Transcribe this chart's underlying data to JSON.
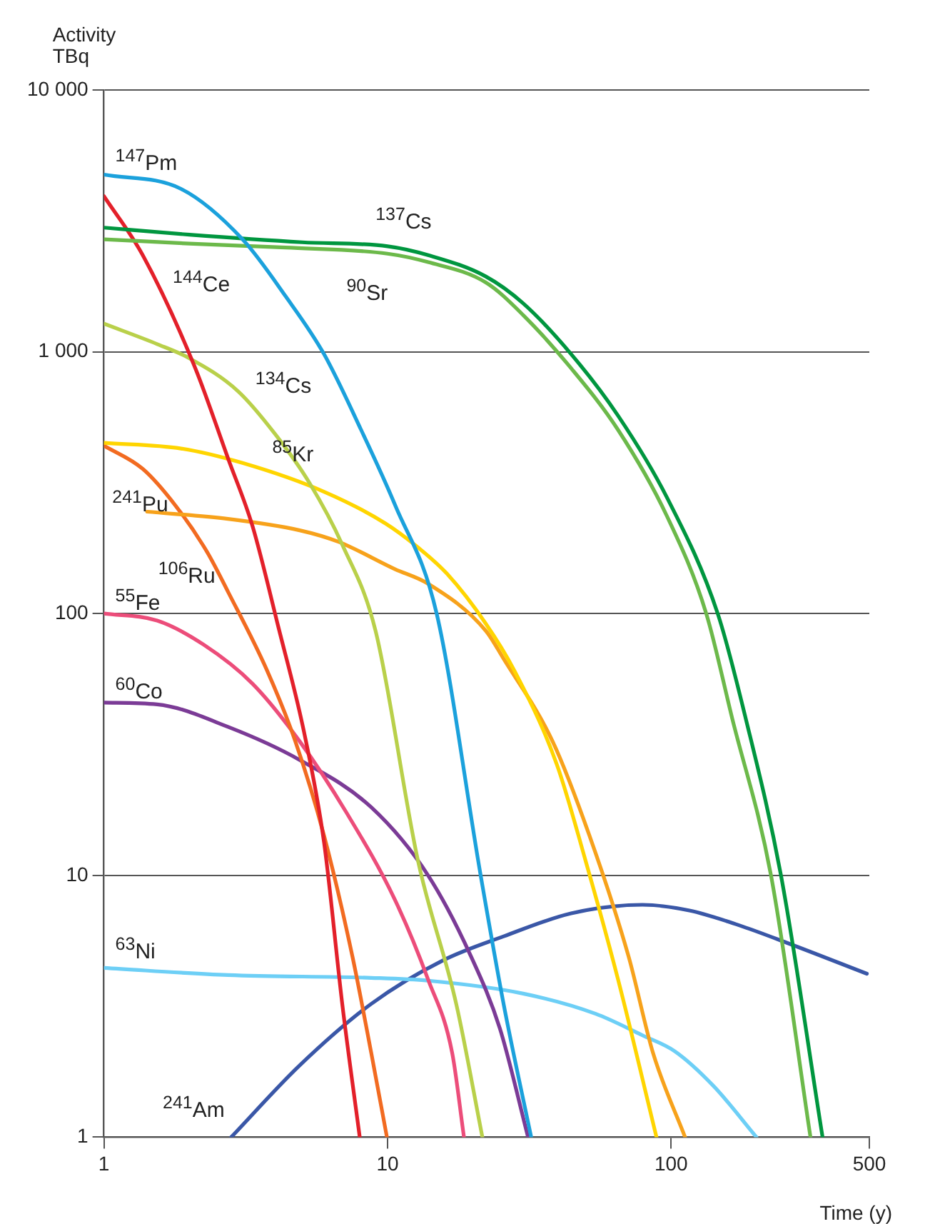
{
  "chart_data": {
    "type": "line",
    "ylabel": "Activity TBq",
    "xlabel": "Time (y)",
    "log": "xy",
    "grid": "y",
    "legend": false,
    "line_style": "solid",
    "xlim": [
      1,
      500
    ],
    "xticks": [
      1,
      10,
      100,
      500
    ],
    "ylim": [
      1,
      10000
    ],
    "yticks": [
      1,
      10,
      100,
      {
        "value": 1000,
        "label": "1 000"
      },
      {
        "value": 10000,
        "label": "10 000"
      }
    ],
    "series": [
      {
        "name": "$^{147}$Pm",
        "color": "#1ba1dc",
        "x": [
          1,
          1.87,
          3.08,
          4.37,
          5.97,
          8.07,
          10.66,
          14.9,
          21.3,
          25.7,
          32.1
        ],
        "values": [
          4750,
          4190,
          2690,
          1630,
          980,
          503,
          258,
          100,
          10,
          3.2,
          1
        ]
      },
      {
        "name": "$^{137}$Cs",
        "color": "#00963f",
        "x": [
          1,
          2,
          5,
          10,
          13.9,
          22.2,
          30.1,
          44.4,
          65,
          96.6,
          146,
          183,
          244,
          342
        ],
        "values": [
          2980,
          2800,
          2620,
          2530,
          2340,
          1940,
          1530,
          980,
          570,
          278,
          100,
          40,
          10,
          1
        ]
      },
      {
        "name": "$^{90}$Sr",
        "color": "#6cb94a",
        "x": [
          1,
          2,
          4.37,
          10,
          13.9,
          22.2,
          30.1,
          44.4,
          65,
          96.6,
          133,
          164,
          225,
          310
        ],
        "values": [
          2690,
          2590,
          2500,
          2370,
          2200,
          1840,
          1380,
          865,
          503,
          236,
          100,
          40,
          10,
          1
        ]
      },
      {
        "name": "$^{144}$Ce",
        "color": "#e3202a",
        "x": [
          1,
          1.37,
          2.1,
          2.74,
          3.34,
          4.12,
          5.07,
          5.97,
          6.93,
          7.98
        ],
        "values": [
          3930,
          2340,
          865,
          391,
          216,
          89,
          35.5,
          13.4,
          3.2,
          1
        ]
      },
      {
        "name": "$^{134}$Cs",
        "color": "#b9d04a",
        "x": [
          1,
          1.54,
          2,
          2.97,
          4.02,
          5.31,
          6.93,
          9.07,
          12.8,
          17.5,
          21.6
        ],
        "values": [
          1280,
          1070,
          945,
          707,
          484,
          315,
          183,
          86,
          11.4,
          3.2,
          1
        ]
      },
      {
        "name": "$^{85}$Kr",
        "color": "#ffd500",
        "x": [
          1,
          1.87,
          3.08,
          5.97,
          9.83,
          12.8,
          16.2,
          22.2,
          27.9,
          39.5,
          49.9,
          65,
          88.8
        ],
        "values": [
          449,
          427,
          376,
          292,
          221,
          179,
          142,
          91.6,
          61,
          26.6,
          11.4,
          4,
          1
        ]
      },
      {
        "name": "$^{241}$Pu",
        "color": "#f7a21b",
        "x": [
          1.42,
          2.74,
          4.9,
          6.71,
          10.6,
          13.9,
          22.2,
          25.7,
          38.2,
          51.5,
          70.8,
          86.3,
          112
        ],
        "values": [
          245,
          230,
          208,
          188,
          148,
          130,
          86,
          67,
          32.5,
          14.2,
          4.9,
          2.1,
          1
        ]
      },
      {
        "name": "$^{106}$Ru",
        "color": "#f26b21",
        "x": [
          1,
          1.37,
          1.79,
          2.31,
          2.74,
          3.75,
          4.73,
          5.97,
          7.52,
          8.76,
          9.95
        ],
        "values": [
          438,
          357,
          258,
          172,
          121,
          61,
          32.5,
          14.2,
          4.9,
          2.1,
          1
        ]
      },
      {
        "name": "$^{55}$Fe",
        "color": "#ec4d7a",
        "x": [
          1,
          1.54,
          2.25,
          3.34,
          4.9,
          7.18,
          10.6,
          13.9,
          16.9,
          18.6
        ],
        "values": [
          100,
          94,
          76,
          54,
          32.5,
          17.3,
          8.1,
          4,
          2.1,
          1
        ]
      },
      {
        "name": "$^{60}$Co",
        "color": "#7b3b96",
        "x": [
          1,
          1.54,
          2.74,
          4.9,
          8.76,
          13.9,
          19.7,
          24.9,
          31.3
        ],
        "values": [
          45.7,
          45,
          36.9,
          27.6,
          18.2,
          10,
          4.9,
          2.6,
          1
        ]
      },
      {
        "name": "$^{63}$Ni",
        "color": "#6dcff6",
        "x": [
          1,
          2.74,
          8.76,
          13.9,
          30.3,
          54.2,
          79.2,
          103,
          141,
          200
        ],
        "values": [
          4.43,
          4.16,
          4.06,
          3.96,
          3.53,
          2.96,
          2.45,
          2.13,
          1.57,
          1
        ]
      },
      {
        "name": "$^{241}$Am",
        "color": "#3a57a7",
        "x": [
          2.81,
          4.9,
          8.76,
          15.6,
          25.7,
          44.4,
          79.2,
          116,
          172,
          259,
          490
        ],
        "values": [
          1,
          1.88,
          3.23,
          4.72,
          5.85,
          7.16,
          7.72,
          7.34,
          6.47,
          5.5,
          4.21
        ]
      }
    ]
  }
}
